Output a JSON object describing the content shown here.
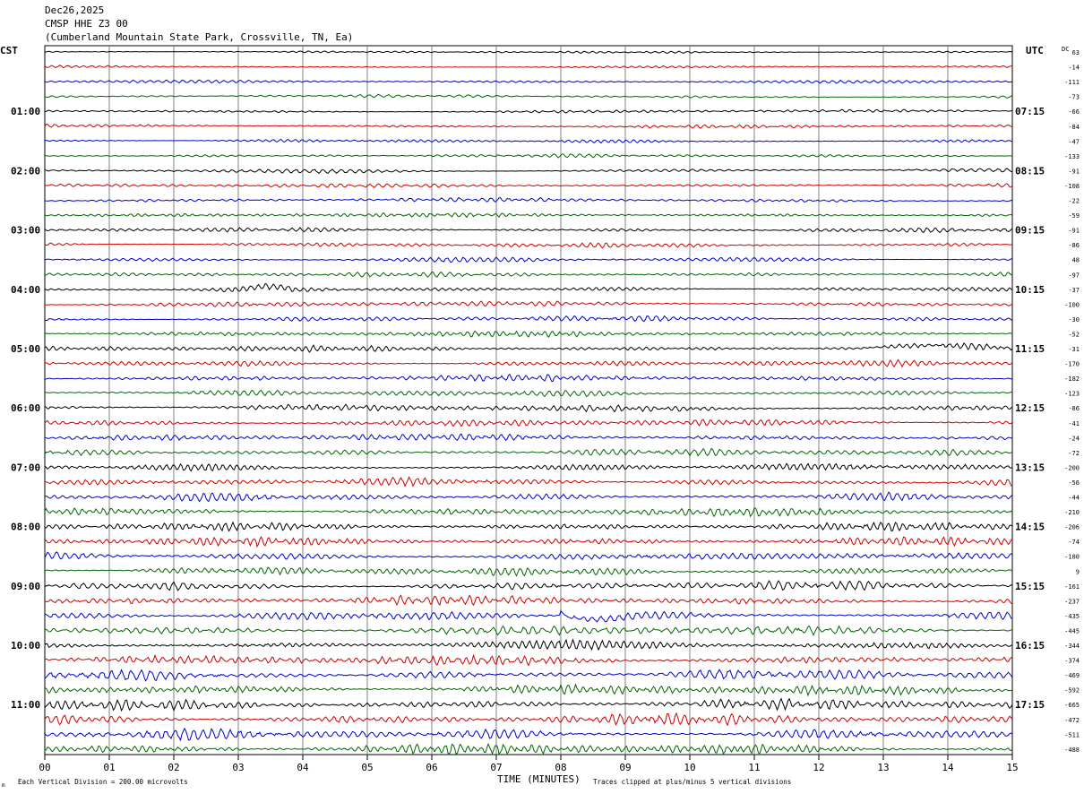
{
  "header": {
    "date": "Dec26,2025",
    "station": "CMSP HHE Z3 00",
    "location": "(Cumberland Mountain State Park, Crossville, TN, Ea)"
  },
  "left_timezone": "CST",
  "right_timezone": "UTC",
  "dc_label": "DC",
  "footer": {
    "scale": "Each Vertical Division =  200.00 microvolts",
    "clip": "Traces clipped at plus/minus 5 vertical divisions",
    "corner_mark": "m"
  },
  "colors": {
    "trace_cycle": [
      "#000000",
      "#cc0000",
      "#0000cc",
      "#006600"
    ],
    "grid": "#808080"
  },
  "chart_data": {
    "type": "line",
    "xlabel": "TIME (MINUTES)",
    "x_ticks": [
      "00",
      "01",
      "02",
      "03",
      "04",
      "05",
      "06",
      "07",
      "08",
      "09",
      "10",
      "11",
      "12",
      "13",
      "14",
      "15"
    ],
    "x_range": [
      0,
      15
    ],
    "left_hour_labels": [
      "01:00",
      "02:00",
      "03:00",
      "04:00",
      "05:00",
      "06:00",
      "07:00",
      "08:00",
      "09:00",
      "10:00",
      "11:00"
    ],
    "right_hour_labels": [
      "07:15",
      "08:15",
      "09:15",
      "10:15",
      "11:15",
      "12:15",
      "13:15",
      "14:15",
      "15:15",
      "16:15",
      "17:15"
    ],
    "dc_offsets": [
      "63",
      "-14",
      "-111",
      "-73",
      "-66",
      "-84",
      "-47",
      "-133",
      "-91",
      "-108",
      "-22",
      "-59",
      "-91",
      "-86",
      "48",
      "-97",
      "-37",
      "-100",
      "-30",
      "-52",
      "-31",
      "-170",
      "-182",
      "-123",
      "-86",
      "-41",
      "-24",
      "-72",
      "-200",
      "-56",
      "-44",
      "-210",
      "-206",
      "-74",
      "-180",
      "9",
      "-161",
      "-237",
      "-435",
      "-445",
      "-344",
      "-374",
      "-469",
      "-592",
      "-665",
      "-472",
      "-511",
      "-488"
    ],
    "trace_count": 48,
    "events": [
      {
        "trace": 16,
        "minute_start": 3.0,
        "minute_end": 3.9,
        "kind": "offset"
      },
      {
        "trace": 20,
        "minute_start": 12.6,
        "minute_end": 15.0,
        "kind": "offset"
      },
      {
        "trace": 38,
        "minute_start": 8.0,
        "minute_end": 9.2,
        "kind": "arrival"
      }
    ]
  }
}
